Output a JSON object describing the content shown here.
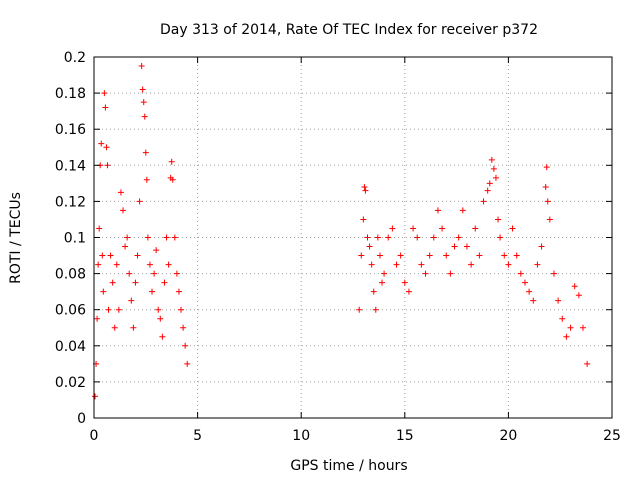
{
  "chart_data": {
    "type": "scatter",
    "title": "Day 313 of 2014, Rate Of TEC Index for receiver p372",
    "xlabel": "GPS time / hours",
    "ylabel": "ROTI / TECUs",
    "xlim": [
      0,
      25
    ],
    "ylim": [
      0,
      0.2
    ],
    "x_ticks": [
      "0",
      "5",
      "10",
      "15",
      "20",
      "25"
    ],
    "y_ticks": [
      "0",
      "0.02",
      "0.04",
      "0.06",
      "0.08",
      "0.1",
      "0.12",
      "0.14",
      "0.16",
      "0.18",
      "0.2"
    ],
    "grid": true,
    "marker": "+",
    "color": "#ff0000",
    "series": [
      {
        "points": [
          [
            0.05,
            0.012
          ],
          [
            0.1,
            0.03
          ],
          [
            0.15,
            0.055
          ],
          [
            0.2,
            0.085
          ],
          [
            0.25,
            0.105
          ],
          [
            0.3,
            0.14
          ],
          [
            0.35,
            0.152
          ],
          [
            0.4,
            0.09
          ],
          [
            0.45,
            0.07
          ],
          [
            0.5,
            0.18
          ],
          [
            0.55,
            0.172
          ],
          [
            0.6,
            0.15
          ],
          [
            0.65,
            0.14
          ],
          [
            0.7,
            0.06
          ],
          [
            0.8,
            0.09
          ],
          [
            0.9,
            0.075
          ],
          [
            1.0,
            0.05
          ],
          [
            1.1,
            0.085
          ],
          [
            1.2,
            0.06
          ],
          [
            1.3,
            0.125
          ],
          [
            1.4,
            0.115
          ],
          [
            1.5,
            0.095
          ],
          [
            1.6,
            0.1
          ],
          [
            1.7,
            0.08
          ],
          [
            1.8,
            0.065
          ],
          [
            1.9,
            0.05
          ],
          [
            2.0,
            0.075
          ],
          [
            2.1,
            0.09
          ],
          [
            2.2,
            0.12
          ],
          [
            2.3,
            0.195
          ],
          [
            2.35,
            0.182
          ],
          [
            2.4,
            0.175
          ],
          [
            2.45,
            0.167
          ],
          [
            2.5,
            0.147
          ],
          [
            2.55,
            0.132
          ],
          [
            2.6,
            0.1
          ],
          [
            2.7,
            0.085
          ],
          [
            2.8,
            0.07
          ],
          [
            2.9,
            0.08
          ],
          [
            3.0,
            0.093
          ],
          [
            3.1,
            0.06
          ],
          [
            3.2,
            0.055
          ],
          [
            3.3,
            0.045
          ],
          [
            3.4,
            0.075
          ],
          [
            3.5,
            0.1
          ],
          [
            3.6,
            0.085
          ],
          [
            3.7,
            0.133
          ],
          [
            3.75,
            0.142
          ],
          [
            3.8,
            0.132
          ],
          [
            3.9,
            0.1
          ],
          [
            4.0,
            0.08
          ],
          [
            4.1,
            0.07
          ],
          [
            4.2,
            0.06
          ],
          [
            4.3,
            0.05
          ],
          [
            4.4,
            0.04
          ],
          [
            4.5,
            0.03
          ],
          [
            12.8,
            0.06
          ],
          [
            12.9,
            0.09
          ],
          [
            13.0,
            0.11
          ],
          [
            13.05,
            0.128
          ],
          [
            13.1,
            0.126
          ],
          [
            13.2,
            0.1
          ],
          [
            13.3,
            0.095
          ],
          [
            13.4,
            0.085
          ],
          [
            13.5,
            0.07
          ],
          [
            13.6,
            0.06
          ],
          [
            13.7,
            0.1
          ],
          [
            13.8,
            0.09
          ],
          [
            13.9,
            0.075
          ],
          [
            14.0,
            0.08
          ],
          [
            14.2,
            0.1
          ],
          [
            14.4,
            0.105
          ],
          [
            14.6,
            0.085
          ],
          [
            14.8,
            0.09
          ],
          [
            15.0,
            0.075
          ],
          [
            15.2,
            0.07
          ],
          [
            15.4,
            0.105
          ],
          [
            15.6,
            0.1
          ],
          [
            15.8,
            0.085
          ],
          [
            16.0,
            0.08
          ],
          [
            16.2,
            0.09
          ],
          [
            16.4,
            0.1
          ],
          [
            16.6,
            0.115
          ],
          [
            16.8,
            0.105
          ],
          [
            17.0,
            0.09
          ],
          [
            17.2,
            0.08
          ],
          [
            17.4,
            0.095
          ],
          [
            17.6,
            0.1
          ],
          [
            17.8,
            0.115
          ],
          [
            18.0,
            0.095
          ],
          [
            18.2,
            0.085
          ],
          [
            18.4,
            0.105
          ],
          [
            18.6,
            0.09
          ],
          [
            18.8,
            0.12
          ],
          [
            19.0,
            0.126
          ],
          [
            19.1,
            0.13
          ],
          [
            19.2,
            0.143
          ],
          [
            19.3,
            0.138
          ],
          [
            19.4,
            0.133
          ],
          [
            19.5,
            0.11
          ],
          [
            19.6,
            0.1
          ],
          [
            19.8,
            0.09
          ],
          [
            20.0,
            0.085
          ],
          [
            20.2,
            0.105
          ],
          [
            20.4,
            0.09
          ],
          [
            20.6,
            0.08
          ],
          [
            20.8,
            0.075
          ],
          [
            21.0,
            0.07
          ],
          [
            21.2,
            0.065
          ],
          [
            21.4,
            0.085
          ],
          [
            21.6,
            0.095
          ],
          [
            21.8,
            0.128
          ],
          [
            21.85,
            0.139
          ],
          [
            21.9,
            0.12
          ],
          [
            22.0,
            0.11
          ],
          [
            22.2,
            0.08
          ],
          [
            22.4,
            0.065
          ],
          [
            22.6,
            0.055
          ],
          [
            22.8,
            0.045
          ],
          [
            23.0,
            0.05
          ],
          [
            23.2,
            0.073
          ],
          [
            23.4,
            0.068
          ],
          [
            23.6,
            0.05
          ],
          [
            23.8,
            0.03
          ]
        ]
      }
    ]
  }
}
